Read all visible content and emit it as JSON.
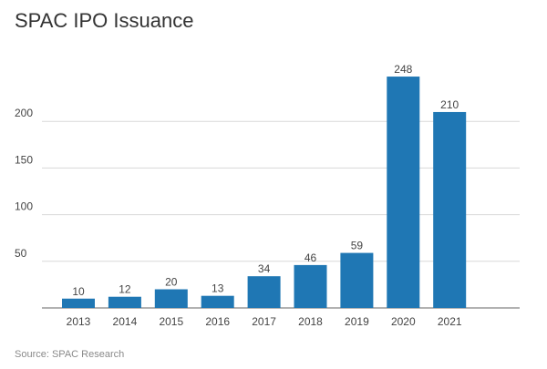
{
  "chart_data": {
    "type": "bar",
    "title": "SPAC IPO Issuance",
    "categories": [
      "2013",
      "2014",
      "2015",
      "2016",
      "2017",
      "2018",
      "2019",
      "2020",
      "2021"
    ],
    "values": [
      10,
      12,
      20,
      13,
      34,
      46,
      59,
      248,
      210
    ],
    "data_labels": [
      "10",
      "12",
      "20",
      "13",
      "34",
      "46",
      "59",
      "248",
      "210"
    ],
    "yticks": [
      50,
      100,
      150,
      200
    ],
    "ytick_labels": [
      "50",
      "100",
      "150",
      "200"
    ],
    "ylim": [
      0,
      250
    ],
    "xlabel": "",
    "ylabel": "",
    "grid": true,
    "colors": {
      "bar": "#1f77b4",
      "grid": "#d9d9d9",
      "axis": "#666666"
    }
  },
  "source": "Source: SPAC Research"
}
